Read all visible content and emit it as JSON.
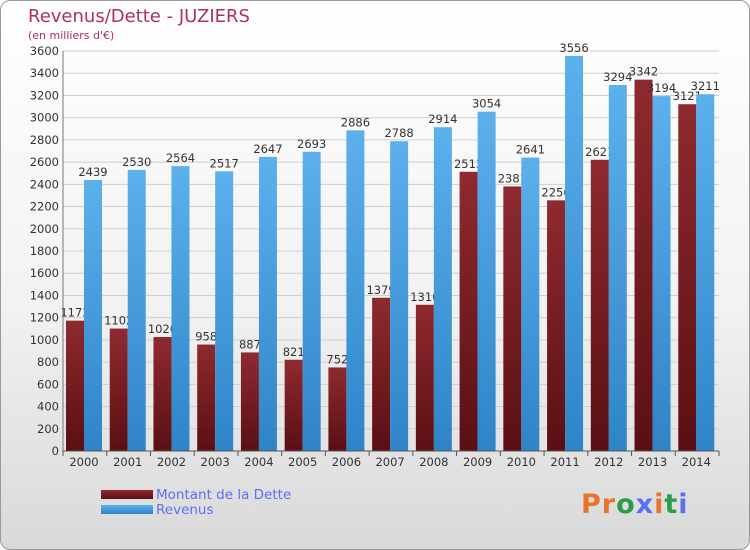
{
  "title": "Revenus/Dette - JUZIERS",
  "subtitle": "(en milliers d'€)",
  "logo": {
    "text": "Proxiti",
    "colors": [
      "#e8732a",
      "#e8732a",
      "#2e9b48",
      "#5a6ff2",
      "#e8732a",
      "#2e9b48",
      "#5a6ff2"
    ]
  },
  "chart_data": {
    "type": "bar",
    "categories": [
      "2000",
      "2001",
      "2002",
      "2003",
      "2004",
      "2005",
      "2006",
      "2007",
      "2008",
      "2009",
      "2010",
      "2011",
      "2012",
      "2013",
      "2014"
    ],
    "series": [
      {
        "name": "Montant de la Dette",
        "color": "#7a1d22",
        "values": [
          1173,
          1102,
          1026,
          958,
          887,
          821,
          752,
          1379,
          1316,
          2513,
          2381,
          2256,
          2621,
          3342,
          3121
        ],
        "labels": [
          "1173",
          "1102",
          "1026",
          "958",
          "887",
          "821",
          "752",
          "1379",
          "1316",
          "2513",
          "2381",
          "2256",
          "2621",
          "3342",
          "3121"
        ]
      },
      {
        "name": "Revenus",
        "color": "#4ea4e5",
        "values": [
          2439,
          2530,
          2564,
          2517,
          2647,
          2693,
          2886,
          2788,
          2914,
          3054,
          2641,
          3556,
          3294,
          3194,
          3211
        ],
        "labels": [
          "2439",
          "2530",
          "2564",
          "2517",
          "2647",
          "2693",
          "2886",
          "2788",
          "2914",
          "3054",
          "2641",
          "3556",
          "3294",
          "3194",
          "3211"
        ]
      }
    ],
    "yticks": [
      "0",
      "200",
      "400",
      "600",
      "800",
      "1000",
      "1200",
      "1400",
      "1600",
      "1800",
      "2000",
      "2200",
      "2400",
      "2600",
      "2800",
      "3000",
      "3200",
      "3400",
      "3600"
    ],
    "ylim": [
      0,
      3600
    ],
    "grid": true,
    "legend_position": "bottom-left"
  }
}
